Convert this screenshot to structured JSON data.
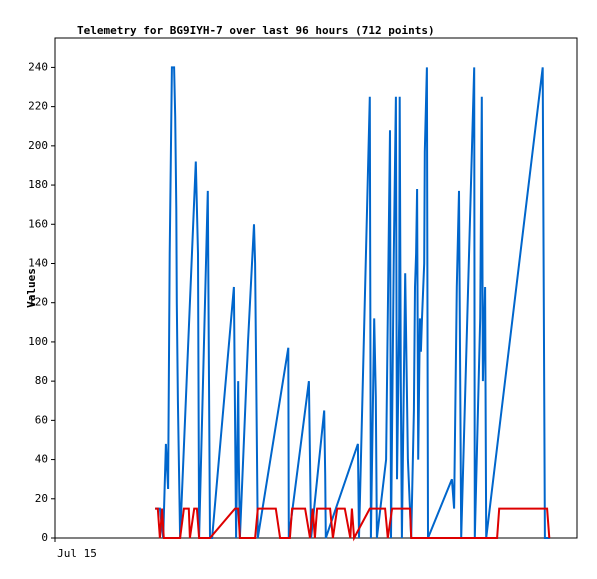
{
  "chart_data": {
    "type": "line",
    "title": "Telemetry for BG9IYH-7 over last 96 hours (712 points)",
    "ylabel": "Values",
    "xlim": [
      0,
      96
    ],
    "xticks": [
      {
        "value": 0,
        "label": "Jul 15"
      }
    ],
    "ylim": [
      0,
      255
    ],
    "yticks": [
      0,
      20,
      40,
      60,
      80,
      100,
      120,
      140,
      160,
      180,
      200,
      220,
      240
    ],
    "series": [
      {
        "color": "#0066cc",
        "x": [
          18.4,
          19.3,
          19.9,
          20.4,
          20.8,
          21.1,
          21.5,
          21.9,
          22.1,
          22.3,
          22.4,
          22.6,
          23.0,
          25.9,
          26.3,
          26.5,
          28.1,
          28.3,
          28.5,
          28.9,
          32.9,
          33.3,
          33.7,
          33.8,
          34.0,
          35.5,
          36.6,
          36.8,
          37.3,
          42.9,
          43.0,
          46.7,
          46.9,
          47.1,
          49.5,
          49.7,
          49.8,
          55.7,
          55.9,
          57.9,
          58.1,
          58.7,
          59.0,
          59.2,
          60.9,
          61.6,
          61.8,
          62.3,
          62.7,
          62.9,
          63.3,
          63.4,
          63.6,
          63.8,
          64.4,
          64.9,
          65.5,
          66.0,
          66.2,
          66.4,
          66.6,
          66.8,
          67.1,
          67.3,
          67.5,
          67.9,
          68.0,
          68.4,
          68.6,
          73.0,
          73.4,
          73.9,
          74.3,
          74.7,
          77.1,
          77.2,
          78.2,
          78.5,
          78.7,
          79.1,
          79.3,
          89.7,
          89.9,
          90.1,
          91.0
        ],
        "values": [
          15,
          15,
          0,
          48,
          25,
          145,
          240,
          240,
          215,
          168,
          120,
          70,
          0,
          192,
          145,
          0,
          177,
          88,
          0,
          0,
          128,
          0,
          80,
          40,
          0,
          100,
          160,
          140,
          0,
          97,
          0,
          80,
          40,
          0,
          65,
          32,
          0,
          48,
          0,
          225,
          0,
          112,
          72,
          0,
          40,
          208,
          0,
          145,
          225,
          30,
          112,
          225,
          80,
          0,
          135,
          40,
          0,
          65,
          128,
          145,
          178,
          40,
          112,
          95,
          112,
          140,
          197,
          240,
          0,
          30,
          15,
          128,
          177,
          0,
          240,
          0,
          112,
          225,
          80,
          128,
          0,
          240,
          120,
          0,
          0
        ]
      },
      {
        "color": "#dd0000",
        "x": [
          18.4,
          18.9,
          19.3,
          19.7,
          20.0,
          23.0,
          23.7,
          24.6,
          24.8,
          25.6,
          26.1,
          26.5,
          28.5,
          33.1,
          33.7,
          34.0,
          36.8,
          37.3,
          40.6,
          41.4,
          43.2,
          43.6,
          46.0,
          46.9,
          47.4,
          47.8,
          48.2,
          50.6,
          51.1,
          51.9,
          53.3,
          54.3,
          54.6,
          55.0,
          57.9,
          60.7,
          61.2,
          62.0,
          65.3,
          65.5,
          81.3,
          81.7,
          90.5,
          90.9
        ],
        "values": [
          15,
          15,
          0,
          15,
          0,
          0,
          15,
          15,
          0,
          15,
          15,
          0,
          0,
          15,
          15,
          0,
          0,
          15,
          15,
          0,
          0,
          15,
          15,
          0,
          15,
          0,
          15,
          15,
          0,
          15,
          15,
          0,
          15,
          0,
          15,
          15,
          0,
          15,
          15,
          0,
          0,
          15,
          15,
          0
        ]
      }
    ]
  }
}
